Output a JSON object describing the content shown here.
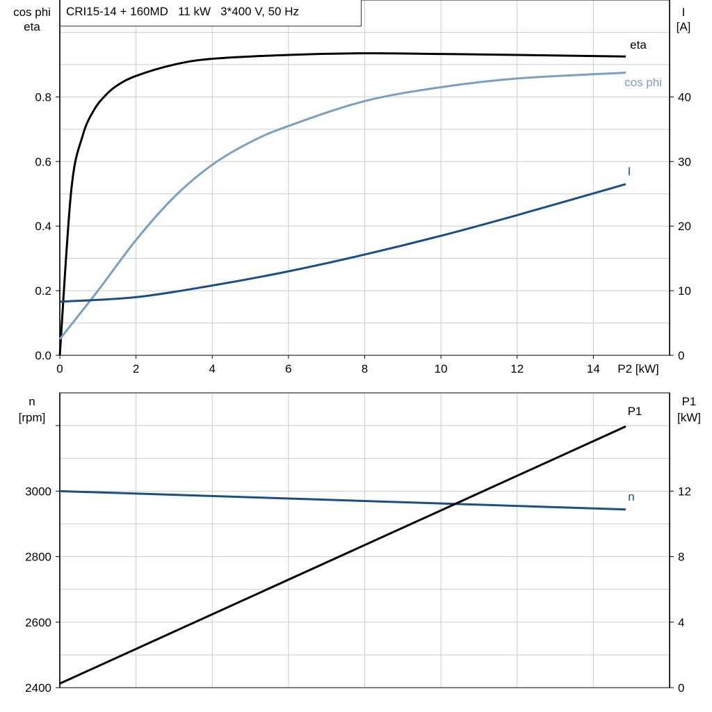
{
  "title": "CRI15-14 + 160MD   11 kW   3*400 V, 50 Hz",
  "colors": {
    "eta": "#000000",
    "cos_phi": "#7a9fc0",
    "I": "#1a4f86",
    "n": "#1a4f86",
    "P1": "#000000",
    "grid": "#cccccc"
  },
  "chart_data": [
    {
      "type": "line",
      "xlabel": "P2 [kW]",
      "ylabel_left": [
        "cos phi",
        "eta"
      ],
      "ylabel_right": [
        "I",
        "[A]"
      ],
      "xlim": [
        0,
        16
      ],
      "ylim_left": [
        0,
        1.1
      ],
      "ylim_right": [
        0,
        55
      ],
      "x_ticks": [
        "0",
        "2",
        "4",
        "6",
        "8",
        "10",
        "12",
        "14"
      ],
      "y_left_ticks": [
        "0.0",
        "0.2",
        "0.4",
        "0.6",
        "0.8"
      ],
      "y_right_ticks": [
        "0",
        "10",
        "20",
        "30",
        "40"
      ],
      "grid": true,
      "series": [
        {
          "name": "eta",
          "axis": "left",
          "x": [
            0,
            0.3,
            0.6,
            0.9,
            1.2,
            1.5,
            2,
            3,
            4,
            6,
            8,
            10,
            12,
            14.85
          ],
          "y": [
            0,
            0.51,
            0.68,
            0.76,
            0.805,
            0.835,
            0.865,
            0.9,
            0.918,
            0.93,
            0.935,
            0.933,
            0.93,
            0.925
          ]
        },
        {
          "name": "cos phi",
          "axis": "left",
          "x": [
            0,
            1,
            2,
            3,
            4,
            5,
            6,
            8,
            10,
            12,
            14.85
          ],
          "y": [
            0.05,
            0.2,
            0.357,
            0.49,
            0.59,
            0.66,
            0.71,
            0.787,
            0.83,
            0.857,
            0.875
          ]
        },
        {
          "name": "I",
          "axis": "right",
          "x": [
            0,
            2,
            4,
            6,
            8,
            10,
            12,
            14.85
          ],
          "y": [
            8.3,
            9.0,
            10.8,
            13.0,
            15.6,
            18.5,
            21.7,
            26.5
          ]
        }
      ]
    },
    {
      "type": "line",
      "ylabel_left": [
        "n",
        "[rpm]"
      ],
      "ylabel_right": [
        "P1",
        "[kW]"
      ],
      "xlim": [
        0,
        16
      ],
      "ylim_left": [
        2400,
        3300
      ],
      "ylim_right": [
        0,
        18
      ],
      "y_left_ticks": [
        "2400",
        "2600",
        "2800",
        "3000"
      ],
      "y_right_ticks": [
        "0",
        "4",
        "8",
        "12"
      ],
      "grid": true,
      "series": [
        {
          "name": "n",
          "axis": "left",
          "x": [
            0,
            14.85
          ],
          "y": [
            3000,
            2944
          ]
        },
        {
          "name": "P1",
          "axis": "right",
          "x": [
            0,
            14.85
          ],
          "y": [
            0.25,
            15.95
          ]
        }
      ]
    }
  ]
}
